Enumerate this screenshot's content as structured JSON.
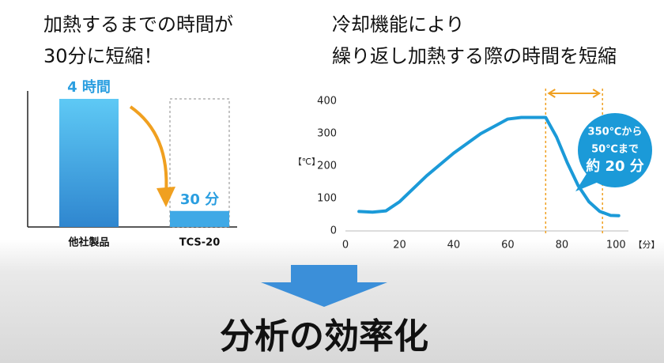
{
  "chart_data": [
    {
      "type": "bar",
      "title": [
        "加熱するまでの時間が",
        "30分に短縮！"
      ],
      "categories": [
        "他社製品",
        "TCS-20"
      ],
      "values": [
        240,
        30
      ],
      "value_labels": [
        "4 時間",
        "30 分"
      ],
      "color": "#3fa9e6"
    },
    {
      "type": "line",
      "title": [
        "冷却機能により",
        "繰り返し加熱する際の時間を短縮"
      ],
      "xlabel": "【分】",
      "ylabel": "【℃】",
      "x": [
        5,
        10,
        15,
        20,
        30,
        40,
        50,
        60,
        65,
        74,
        78,
        82,
        86,
        90,
        94,
        98,
        101
      ],
      "series": [
        {
          "name": "温度",
          "color": "#1b9ad8",
          "values": [
            60,
            58,
            62,
            90,
            170,
            240,
            300,
            345,
            350,
            350,
            290,
            210,
            140,
            90,
            60,
            48,
            47
          ]
        }
      ],
      "xlim": [
        0,
        104
      ],
      "xticks": [
        0,
        20,
        40,
        60,
        80,
        100
      ],
      "ylim": [
        0,
        400
      ],
      "yticks": [
        0,
        100,
        200,
        300,
        400
      ],
      "markers": [
        74,
        95
      ],
      "marker_color": "#f0a020",
      "annotation": [
        "350℃から",
        "50℃まで",
        "約 20 分"
      ]
    }
  ],
  "conclusion": "分析の効率化"
}
